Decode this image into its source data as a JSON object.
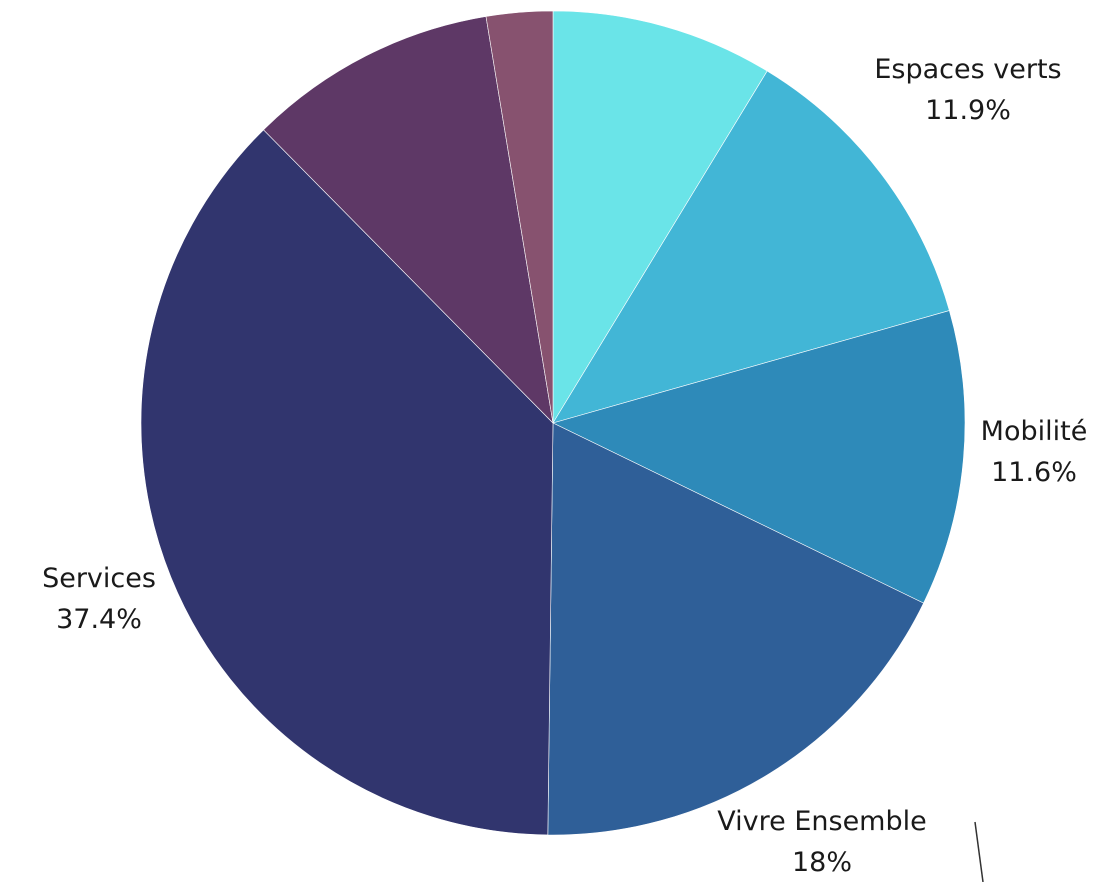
{
  "chart_data": {
    "type": "pie",
    "start": "top",
    "direction": "clockwise",
    "slices": [
      {
        "name": "",
        "value": 8.7,
        "color": "#6ae4e8",
        "label_name": "",
        "label_value": ""
      },
      {
        "name": "Espaces verts",
        "value": 11.9,
        "color": "#42b6d6",
        "label_name": "Espaces verts",
        "label_value": "11.9%"
      },
      {
        "name": "Mobilité",
        "value": 11.6,
        "color": "#2e8ab9",
        "label_name": "Mobilité",
        "label_value": "11.6%"
      },
      {
        "name": "Vivre Ensemble",
        "value": 18,
        "color": "#2f5f98",
        "label_name": "Vivre Ensemble",
        "label_value": "18%"
      },
      {
        "name": "Services",
        "value": 37.4,
        "color": "#31356e",
        "label_name": "Services",
        "label_value": "37.4%"
      },
      {
        "name": "",
        "value": 9.8,
        "color": "#5e3866",
        "label_name": "",
        "label_value": ""
      },
      {
        "name": "",
        "value": 2.6,
        "color": "#87526f",
        "label_name": "",
        "label_value": ""
      }
    ]
  }
}
